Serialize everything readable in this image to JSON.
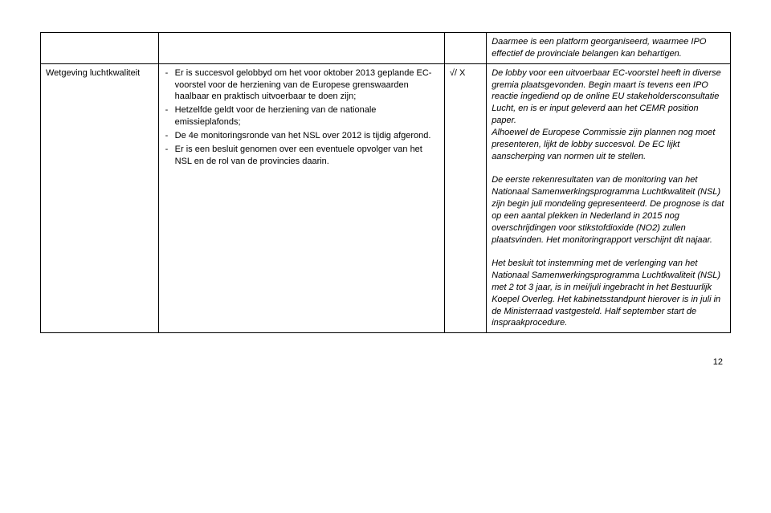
{
  "row1": {
    "col4": "Daarmee is een platform georganiseerd, waarmee IPO effectief de provinciale belangen kan behartigen."
  },
  "row2": {
    "col1": "Wetgeving luchtkwaliteit",
    "col2_items": [
      "Er is succesvol gelobbyd om het voor oktober 2013 geplande EC-voorstel voor de herziening van de Europese grenswaarden haalbaar en praktisch uitvoerbaar te doen zijn;",
      "Hetzelfde geldt voor de herziening van de nationale emissieplafonds;",
      "De 4e monitoringsronde van het NSL over 2012 is tijdig afgerond.",
      "Er is een besluit genomen over een eventuele opvolger van het NSL en de rol van de provincies daarin."
    ],
    "col3": "√/ X",
    "col4_p1": "De lobby voor een uitvoerbaar EC-voorstel heeft in diverse gremia plaatsgevonden. Begin maart is tevens een IPO reactie ingediend op de online EU stakeholdersconsultatie Lucht, en is er input geleverd aan het CEMR position paper.",
    "col4_p2": "Alhoewel de Europese Commissie zijn plannen nog moet presenteren, lijkt de lobby succesvol. De EC lijkt aanscherping van normen uit te stellen.",
    "col4_p3": "De eerste rekenresultaten van de monitoring van het Nationaal Samenwerkingsprogramma Luchtkwaliteit (NSL) zijn begin juli mondeling gepresenteerd. De prognose is dat op een aantal plekken in Nederland in 2015 nog overschrijdingen voor stikstofdioxide (NO2) zullen plaatsvinden. Het monitoringrapport verschijnt dit najaar.",
    "col4_p4": "Het besluit tot instemming met de verlenging van het Nationaal Samenwerkingsprogramma Luchtkwaliteit (NSL) met 2 tot 3 jaar, is in mei/juli ingebracht in het Bestuurlijk Koepel Overleg. Het kabinetsstandpunt hierover is in juli in de Ministerraad vastgesteld. Half september start de inspraakprocedure."
  },
  "pageNumber": "12"
}
